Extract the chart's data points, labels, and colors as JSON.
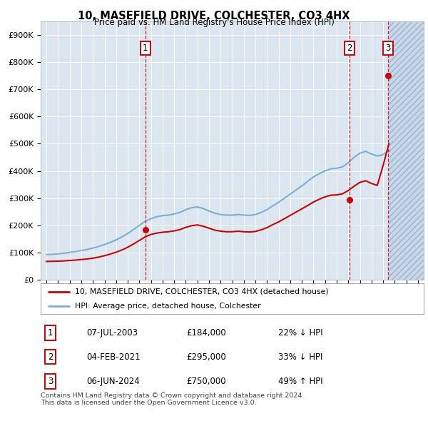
{
  "title": "10, MASEFIELD DRIVE, COLCHESTER, CO3 4HX",
  "subtitle": "Price paid vs. HM Land Registry's House Price Index (HPI)",
  "ylim": [
    0,
    950000
  ],
  "yticks": [
    0,
    100000,
    200000,
    300000,
    400000,
    500000,
    600000,
    700000,
    800000,
    900000
  ],
  "ytick_labels": [
    "£0",
    "£100K",
    "£200K",
    "£300K",
    "£400K",
    "£500K",
    "£600K",
    "£700K",
    "£800K",
    "£900K"
  ],
  "xlim_start": 1994.5,
  "xlim_end": 2027.5,
  "xticks": [
    1995,
    1996,
    1997,
    1998,
    1999,
    2000,
    2001,
    2002,
    2003,
    2004,
    2005,
    2006,
    2007,
    2008,
    2009,
    2010,
    2011,
    2012,
    2013,
    2014,
    2015,
    2016,
    2017,
    2018,
    2019,
    2020,
    2021,
    2022,
    2023,
    2024,
    2025,
    2026,
    2027
  ],
  "bg_color": "#dce6f1",
  "sale_color": "#cc0000",
  "hpi_color": "#7bafd4",
  "hatch_start": 2024.5,
  "transactions": [
    {
      "date": 2003.52,
      "price": 184000,
      "label": "1"
    },
    {
      "date": 2021.09,
      "price": 295000,
      "label": "2"
    },
    {
      "date": 2024.43,
      "price": 750000,
      "label": "3"
    }
  ],
  "legend_sale_label": "10, MASEFIELD DRIVE, COLCHESTER, CO3 4HX (detached house)",
  "legend_hpi_label": "HPI: Average price, detached house, Colchester",
  "table_rows": [
    {
      "num": "1",
      "date": "07-JUL-2003",
      "price": "£184,000",
      "change": "22% ↓ HPI"
    },
    {
      "num": "2",
      "date": "04-FEB-2021",
      "price": "£295,000",
      "change": "33% ↓ HPI"
    },
    {
      "num": "3",
      "date": "06-JUN-2024",
      "price": "£750,000",
      "change": "49% ↑ HPI"
    }
  ],
  "footer": "Contains HM Land Registry data © Crown copyright and database right 2024.\nThis data is licensed under the Open Government Licence v3.0.",
  "hpi_x": [
    1995,
    1995.5,
    1996,
    1996.5,
    1997,
    1997.5,
    1998,
    1998.5,
    1999,
    1999.5,
    2000,
    2000.5,
    2001,
    2001.5,
    2002,
    2002.5,
    2003,
    2003.5,
    2004,
    2004.5,
    2005,
    2005.5,
    2006,
    2006.5,
    2007,
    2007.5,
    2008,
    2008.5,
    2009,
    2009.5,
    2010,
    2010.5,
    2011,
    2011.5,
    2012,
    2012.5,
    2013,
    2013.5,
    2014,
    2014.5,
    2015,
    2015.5,
    2016,
    2016.5,
    2017,
    2017.5,
    2018,
    2018.5,
    2019,
    2019.5,
    2020,
    2020.5,
    2021,
    2021.5,
    2022,
    2022.5,
    2023,
    2023.5,
    2024,
    2024.5
  ],
  "hpi_y": [
    93000,
    94000,
    96000,
    98000,
    101000,
    104000,
    108000,
    112000,
    117000,
    123000,
    130000,
    138000,
    147000,
    158000,
    170000,
    185000,
    200000,
    215000,
    225000,
    232000,
    236000,
    238000,
    242000,
    248000,
    258000,
    265000,
    268000,
    262000,
    253000,
    245000,
    240000,
    238000,
    238000,
    240000,
    238000,
    237000,
    240000,
    248000,
    258000,
    272000,
    285000,
    300000,
    315000,
    330000,
    345000,
    362000,
    378000,
    390000,
    400000,
    408000,
    410000,
    415000,
    430000,
    450000,
    465000,
    472000,
    462000,
    455000,
    460000,
    475000
  ],
  "sale_x": [
    1995,
    1995.5,
    1996,
    1996.5,
    1997,
    1997.5,
    1998,
    1998.5,
    1999,
    1999.5,
    2000,
    2000.5,
    2001,
    2001.5,
    2002,
    2002.5,
    2003,
    2003.5,
    2004,
    2004.5,
    2005,
    2005.5,
    2006,
    2006.5,
    2007,
    2007.5,
    2008,
    2008.5,
    2009,
    2009.5,
    2010,
    2010.5,
    2011,
    2011.5,
    2012,
    2012.5,
    2013,
    2013.5,
    2014,
    2014.5,
    2015,
    2015.5,
    2016,
    2016.5,
    2017,
    2017.5,
    2018,
    2018.5,
    2019,
    2019.5,
    2020,
    2020.5,
    2021,
    2021.5,
    2022,
    2022.5,
    2023,
    2023.5,
    2024,
    2024.5
  ],
  "sale_y": [
    68000,
    68500,
    69000,
    70000,
    71500,
    73000,
    75000,
    77000,
    80000,
    84000,
    89000,
    95000,
    102000,
    110000,
    120000,
    132000,
    145000,
    158000,
    167000,
    172000,
    175000,
    177000,
    180000,
    185000,
    193000,
    199000,
    202000,
    197000,
    190000,
    183000,
    179000,
    177000,
    177000,
    179000,
    177000,
    176000,
    178000,
    184000,
    192000,
    203000,
    213000,
    225000,
    237000,
    249000,
    261000,
    273000,
    286000,
    296000,
    305000,
    311000,
    312000,
    316000,
    328000,
    344000,
    358000,
    364000,
    354000,
    347000,
    420000,
    500000
  ]
}
